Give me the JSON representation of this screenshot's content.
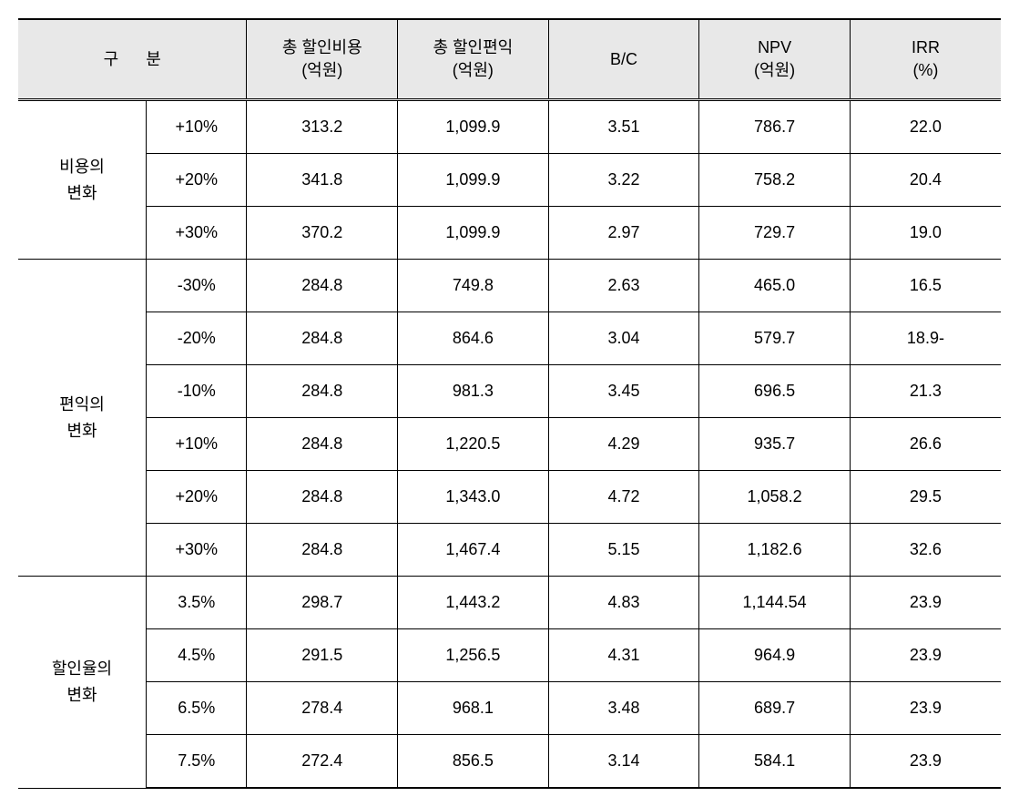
{
  "table": {
    "background_header": "#e8e8e8",
    "border_color": "#000000",
    "text_color": "#000000",
    "font_size": 18,
    "headers": {
      "category_label_1": "구",
      "category_label_2": "분",
      "col1": "총 할인비용",
      "col1_unit": "(억원)",
      "col2": "총 할인편익",
      "col2_unit": "(억원)",
      "col3": "B/C",
      "col4": "NPV",
      "col4_unit": "(억원)",
      "col5": "IRR",
      "col5_unit": "(%)"
    },
    "groups": [
      {
        "label_line1": "비용의",
        "label_line2": "변화",
        "rows": [
          {
            "sub": "+10%",
            "cost": "313.2",
            "benefit": "1,099.9",
            "bc": "3.51",
            "npv": "786.7",
            "irr": "22.0"
          },
          {
            "sub": "+20%",
            "cost": "341.8",
            "benefit": "1,099.9",
            "bc": "3.22",
            "npv": "758.2",
            "irr": "20.4"
          },
          {
            "sub": "+30%",
            "cost": "370.2",
            "benefit": "1,099.9",
            "bc": "2.97",
            "npv": "729.7",
            "irr": "19.0"
          }
        ]
      },
      {
        "label_line1": "편익의",
        "label_line2": "변화",
        "rows": [
          {
            "sub": "-30%",
            "cost": "284.8",
            "benefit": "749.8",
            "bc": "2.63",
            "npv": "465.0",
            "irr": "16.5"
          },
          {
            "sub": "-20%",
            "cost": "284.8",
            "benefit": "864.6",
            "bc": "3.04",
            "npv": "579.7",
            "irr": "18.9-"
          },
          {
            "sub": "-10%",
            "cost": "284.8",
            "benefit": "981.3",
            "bc": "3.45",
            "npv": "696.5",
            "irr": "21.3"
          },
          {
            "sub": "+10%",
            "cost": "284.8",
            "benefit": "1,220.5",
            "bc": "4.29",
            "npv": "935.7",
            "irr": "26.6"
          },
          {
            "sub": "+20%",
            "cost": "284.8",
            "benefit": "1,343.0",
            "bc": "4.72",
            "npv": "1,058.2",
            "irr": "29.5"
          },
          {
            "sub": "+30%",
            "cost": "284.8",
            "benefit": "1,467.4",
            "bc": "5.15",
            "npv": "1,182.6",
            "irr": "32.6"
          }
        ]
      },
      {
        "label_line1": "할인율의",
        "label_line2": "변화",
        "rows": [
          {
            "sub": "3.5%",
            "cost": "298.7",
            "benefit": "1,443.2",
            "bc": "4.83",
            "npv": "1,144.54",
            "irr": "23.9"
          },
          {
            "sub": "4.5%",
            "cost": "291.5",
            "benefit": "1,256.5",
            "bc": "4.31",
            "npv": "964.9",
            "irr": "23.9"
          },
          {
            "sub": "6.5%",
            "cost": "278.4",
            "benefit": "968.1",
            "bc": "3.48",
            "npv": "689.7",
            "irr": "23.9"
          },
          {
            "sub": "7.5%",
            "cost": "272.4",
            "benefit": "856.5",
            "bc": "3.14",
            "npv": "584.1",
            "irr": "23.9"
          }
        ]
      }
    ]
  }
}
